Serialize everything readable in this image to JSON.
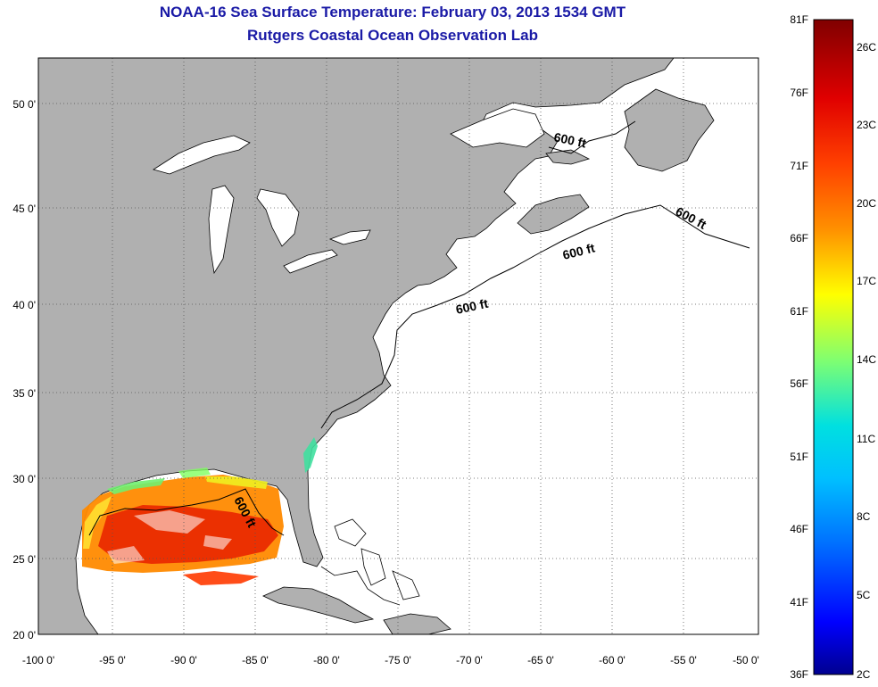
{
  "header": {
    "title": "NOAA-16 Sea Surface Temperature:  February 03, 2013 1534 GMT",
    "subtitle": "Rutgers Coastal Ocean Observation Lab"
  },
  "map": {
    "lon_range": [
      -100,
      -50
    ],
    "lat_range": [
      20,
      52
    ],
    "lon_ticks": [
      {
        "value": -100,
        "label": "-100 0'"
      },
      {
        "value": -95,
        "label": "-95 0'"
      },
      {
        "value": -90,
        "label": "-90 0'"
      },
      {
        "value": -85,
        "label": "-85 0'"
      },
      {
        "value": -80,
        "label": "-80 0'"
      },
      {
        "value": -75,
        "label": "-75 0'"
      },
      {
        "value": -70,
        "label": "-70 0'"
      },
      {
        "value": -65,
        "label": "-65 0'"
      },
      {
        "value": -60,
        "label": "-60 0'"
      },
      {
        "value": -55,
        "label": "-55 0'"
      },
      {
        "value": -50,
        "label": "-50 0'"
      }
    ],
    "lat_ticks": [
      {
        "value": 20,
        "label": "20 0'"
      },
      {
        "value": 25,
        "label": "25 0'"
      },
      {
        "value": 30,
        "label": "30 0'"
      },
      {
        "value": 35,
        "label": "35 0'"
      },
      {
        "value": 40,
        "label": "40 0'"
      },
      {
        "value": 45,
        "label": "45 0'"
      },
      {
        "value": 50,
        "label": "50 0'"
      }
    ],
    "grid": "dotted",
    "land_color": "#b0b0b0",
    "ocean_color": "#ffffff",
    "contour_label": "600 ft"
  },
  "colorbar": {
    "f_labels": [
      "81F",
      "76F",
      "71F",
      "66F",
      "61F",
      "56F",
      "51F",
      "46F",
      "41F",
      "36F"
    ],
    "c_labels": [
      "26C",
      "23C",
      "20C",
      "17C",
      "14C",
      "11C",
      "8C",
      "5C",
      "2C"
    ],
    "colors": [
      "#800000",
      "#ff0000",
      "#ff8000",
      "#ffff00",
      "#80ff80",
      "#00ffff",
      "#0080ff",
      "#0000ff",
      "#00008f"
    ]
  }
}
